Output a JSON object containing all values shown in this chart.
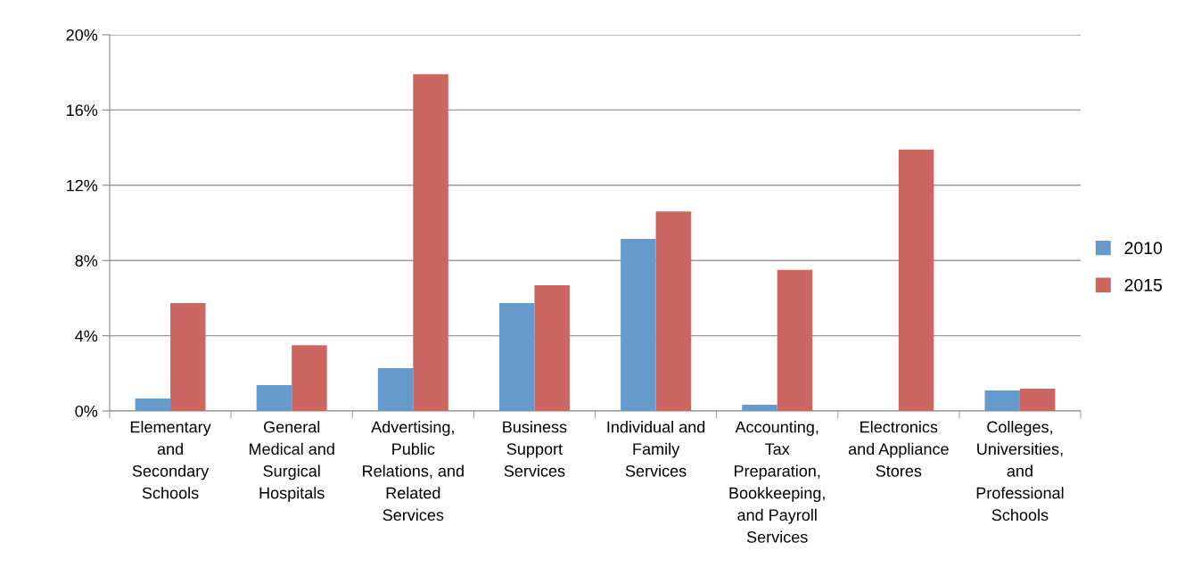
{
  "chart_data": {
    "type": "bar",
    "categories": [
      "Elementary\nand\nSecondary\nSchools",
      "General\nMedical and\nSurgical\nHospitals",
      "Advertising,\nPublic\nRelations, and\nRelated\nServices",
      "Business\nSupport\nServices",
      "Individual and\nFamily\nServices",
      "Accounting,\nTax\nPreparation,\nBookkeeping,\nand Payroll\nServices",
      "Electronics\nand Appliance\nStores",
      "Colleges,\nUniversities,\nand\nProfessional\nSchools"
    ],
    "series": [
      {
        "name": "2010",
        "color": "#6699cc",
        "values": [
          0.66,
          1.37,
          2.27,
          5.73,
          9.15,
          0.33,
          0,
          1.09
        ]
      },
      {
        "name": "2015",
        "color": "#cc6660",
        "values": [
          5.73,
          3.5,
          17.9,
          6.68,
          10.6,
          7.5,
          13.9,
          1.18
        ]
      }
    ],
    "ylim": [
      0,
      20
    ],
    "yticks": [
      {
        "value": 0,
        "label": "0%"
      },
      {
        "value": 4,
        "label": "4%"
      },
      {
        "value": 8,
        "label": "8%"
      },
      {
        "value": 12,
        "label": "12%"
      },
      {
        "value": 16,
        "label": "16%"
      },
      {
        "value": 20,
        "label": "20%"
      }
    ],
    "grid": "y",
    "legend": "right"
  }
}
